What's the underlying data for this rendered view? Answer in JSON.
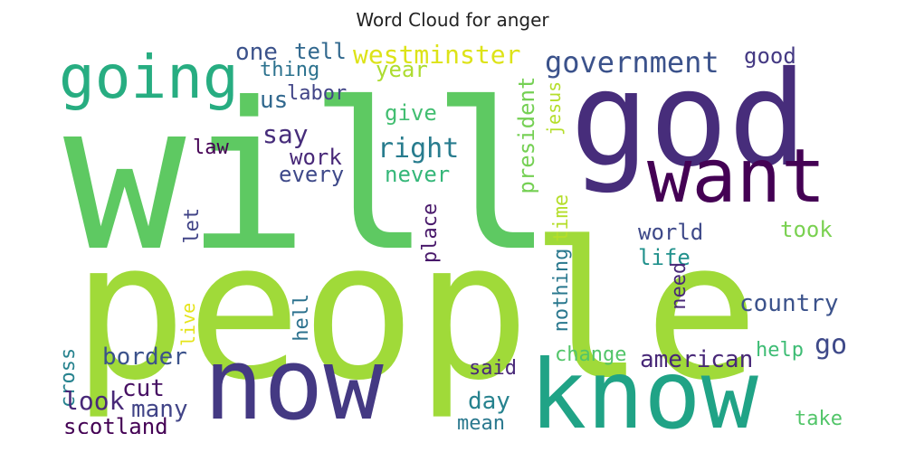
{
  "title": "Word Cloud for anger",
  "words": [
    {
      "text": "will",
      "color": "#5ec962"
    },
    {
      "text": "people",
      "color": "#a0da39"
    },
    {
      "text": "god",
      "color": "#472d7b"
    },
    {
      "text": "now",
      "color": "#443983"
    },
    {
      "text": "know",
      "color": "#20a386"
    },
    {
      "text": "want",
      "color": "#440154"
    },
    {
      "text": "going",
      "color": "#27ad81"
    },
    {
      "text": "government",
      "color": "#3b528b"
    },
    {
      "text": "westminster",
      "color": "#dde318"
    },
    {
      "text": "one",
      "color": "#3b528b"
    },
    {
      "text": "tell",
      "color": "#31688e"
    },
    {
      "text": "good",
      "color": "#443983"
    },
    {
      "text": "thing",
      "color": "#2c728e"
    },
    {
      "text": "year",
      "color": "#addc30"
    },
    {
      "text": "us",
      "color": "#31688e"
    },
    {
      "text": "labor",
      "color": "#414487"
    },
    {
      "text": "give",
      "color": "#42be71"
    },
    {
      "text": "say",
      "color": "#472d7b"
    },
    {
      "text": "right",
      "color": "#287c8e"
    },
    {
      "text": "president",
      "color": "#75d054"
    },
    {
      "text": "jesus",
      "color": "#b5de2b"
    },
    {
      "text": "law",
      "color": "#440154"
    },
    {
      "text": "work",
      "color": "#482878"
    },
    {
      "text": "every",
      "color": "#3e4989"
    },
    {
      "text": "never",
      "color": "#35b779"
    },
    {
      "text": "let",
      "color": "#414487"
    },
    {
      "text": "place",
      "color": "#48186a"
    },
    {
      "text": "time",
      "color": "#b5de2b"
    },
    {
      "text": "nothing",
      "color": "#2a788e"
    },
    {
      "text": "world",
      "color": "#3e4989"
    },
    {
      "text": "took",
      "color": "#7ad151"
    },
    {
      "text": "life",
      "color": "#21918c"
    },
    {
      "text": "need",
      "color": "#482878"
    },
    {
      "text": "country",
      "color": "#3b528b"
    },
    {
      "text": "hell",
      "color": "#2c728e"
    },
    {
      "text": "live",
      "color": "#e5e419"
    },
    {
      "text": "go",
      "color": "#3e4989"
    },
    {
      "text": "border",
      "color": "#3b528b"
    },
    {
      "text": "change",
      "color": "#52c569"
    },
    {
      "text": "american",
      "color": "#482878"
    },
    {
      "text": "help",
      "color": "#3dbc74"
    },
    {
      "text": "cross",
      "color": "#26828e"
    },
    {
      "text": "cut",
      "color": "#471063"
    },
    {
      "text": "said",
      "color": "#482878"
    },
    {
      "text": "look",
      "color": "#482878"
    },
    {
      "text": "many",
      "color": "#414487"
    },
    {
      "text": "day",
      "color": "#26828e"
    },
    {
      "text": "scotland",
      "color": "#440154"
    },
    {
      "text": "mean",
      "color": "#2a788e"
    },
    {
      "text": "take",
      "color": "#52c569"
    }
  ]
}
